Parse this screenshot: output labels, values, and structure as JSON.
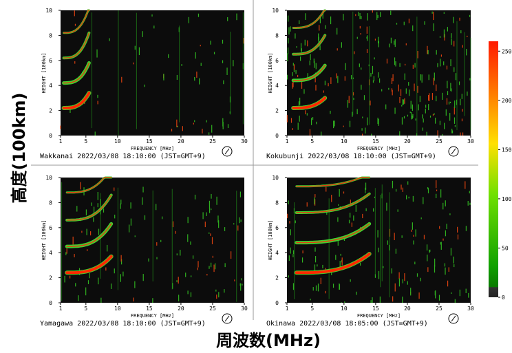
{
  "y_axis_label": "高度(100km)",
  "x_axis_label": "周波数(MHz)",
  "axes": {
    "x_label": "FREQUENCY [MHz]",
    "y_label": "HEIGHT [100km]",
    "xlim": [
      1,
      30
    ],
    "xticks": [
      1,
      5,
      10,
      15,
      20,
      25,
      30
    ],
    "ylim": [
      0,
      10
    ],
    "yticks": [
      0,
      2,
      4,
      6,
      8,
      10
    ]
  },
  "panels": [
    {
      "station": "Wakkanai 2022/03/08 18:10:00 (JST=GMT+9)"
    },
    {
      "station": "Kokubunji 2022/03/08 18:10:00 (JST=GMT+9)"
    },
    {
      "station": "Yamagawa 2022/03/08 18:10:00 (JST=GMT+9)"
    },
    {
      "station": "Okinawa 2022/03/08 18:05:00 (JST=GMT+9)"
    }
  ],
  "colorbar": {
    "lim": [
      0,
      260
    ],
    "ticks": [
      0,
      50,
      100,
      150,
      200,
      250
    ]
  }
}
